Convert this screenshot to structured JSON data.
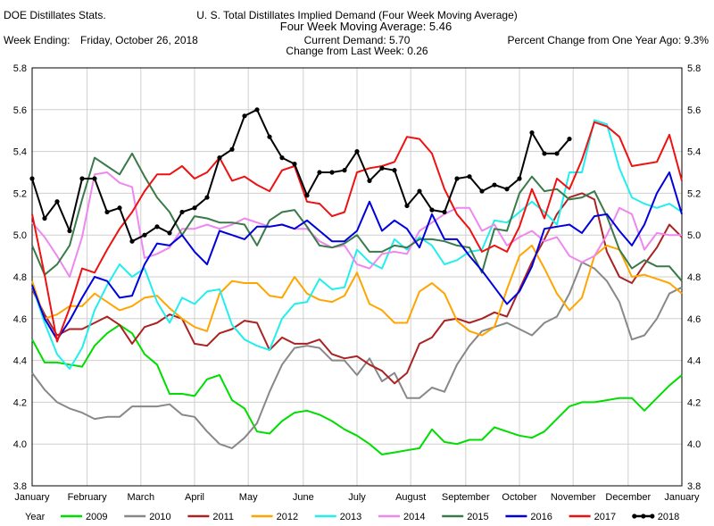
{
  "header": {
    "left_title": "DOE Distillates Stats.",
    "main_title": "U. S. Total Distillates Implied Demand  (Four Week Moving Average)",
    "sub_title": "Four Week Moving Average:  5.46",
    "week_label": "Week Ending:",
    "week_value": "Friday, October 26, 2018",
    "current_demand": "Current Demand:  5.70",
    "change_last_week": "Change from Last Week:  0.26",
    "pct_change": "Percent Change from One Year Ago:  9.3%"
  },
  "chart_data": {
    "type": "line",
    "title": "U. S. Total Distillates Implied Demand  (Four Week Moving Average)",
    "xlabel": "",
    "ylabel": "",
    "xlim": [
      1,
      53
    ],
    "ylim": [
      3.8,
      5.8
    ],
    "y_ticks": [
      "3.8",
      "4.0",
      "4.2",
      "4.4",
      "4.6",
      "4.8",
      "5.0",
      "5.2",
      "5.4",
      "5.6",
      "5.8"
    ],
    "y_tick_values": [
      3.8,
      4.0,
      4.2,
      4.4,
      4.6,
      4.8,
      5.0,
      5.2,
      5.4,
      5.6,
      5.8
    ],
    "x_tick_labels": [
      "January",
      "February",
      "March",
      "April",
      "May",
      "June",
      "July",
      "August",
      "September",
      "October",
      "November",
      "December",
      "January"
    ],
    "x_tick_weeks": [
      1,
      5.4,
      9.7,
      14,
      18.3,
      22.7,
      27,
      31.3,
      35.7,
      40,
      44.3,
      48.7,
      53
    ],
    "grid": true,
    "legend_title": "Year",
    "legend_position": "bottom",
    "series": [
      {
        "name": "2009",
        "color": "#00dd00",
        "values": [
          4.5,
          4.39,
          4.39,
          4.38,
          4.37,
          4.47,
          4.53,
          4.57,
          4.53,
          4.43,
          4.38,
          4.24,
          4.24,
          4.23,
          4.31,
          4.33,
          4.21,
          4.17,
          4.06,
          4.05,
          4.11,
          4.15,
          4.16,
          4.14,
          4.11,
          4.07,
          4.04,
          4.0,
          3.95,
          3.96,
          3.97,
          3.98,
          4.07,
          4.01,
          4.0,
          4.02,
          4.02,
          4.08,
          4.06,
          4.04,
          4.03,
          4.06,
          4.12,
          4.18,
          4.2,
          4.2,
          4.21,
          4.22,
          4.22,
          4.16,
          4.22,
          4.28,
          4.33
        ]
      },
      {
        "name": "2010",
        "color": "#888888",
        "values": [
          4.34,
          4.26,
          4.2,
          4.17,
          4.15,
          4.12,
          4.13,
          4.13,
          4.18,
          4.18,
          4.18,
          4.19,
          4.14,
          4.13,
          4.06,
          4.0,
          3.98,
          4.03,
          4.1,
          4.25,
          4.38,
          4.46,
          4.47,
          4.46,
          4.4,
          4.4,
          4.33,
          4.41,
          4.3,
          4.34,
          4.22,
          4.22,
          4.27,
          4.25,
          4.38,
          4.47,
          4.54,
          4.56,
          4.58,
          4.55,
          4.52,
          4.58,
          4.61,
          4.72,
          4.87,
          4.84,
          4.78,
          4.68,
          4.5,
          4.52,
          4.6,
          4.72,
          4.75
        ]
      },
      {
        "name": "2011",
        "color": "#aa2222",
        "values": [
          4.74,
          4.62,
          4.52,
          4.55,
          4.55,
          4.58,
          4.61,
          4.57,
          4.48,
          4.56,
          4.58,
          4.62,
          4.6,
          4.48,
          4.47,
          4.53,
          4.55,
          4.59,
          4.58,
          4.45,
          4.51,
          4.48,
          4.48,
          4.5,
          4.43,
          4.41,
          4.42,
          4.38,
          4.35,
          4.29,
          4.34,
          4.48,
          4.51,
          4.59,
          4.6,
          4.58,
          4.6,
          4.63,
          4.61,
          4.74,
          4.87,
          4.98,
          5.1,
          5.18,
          5.2,
          5.17,
          4.92,
          4.8,
          4.77,
          4.86,
          4.94,
          5.05,
          4.99
        ]
      },
      {
        "name": "2012",
        "color": "#ffa500",
        "values": [
          4.78,
          4.6,
          4.62,
          4.66,
          4.66,
          4.72,
          4.68,
          4.64,
          4.66,
          4.7,
          4.71,
          4.65,
          4.6,
          4.56,
          4.54,
          4.72,
          4.78,
          4.77,
          4.77,
          4.71,
          4.7,
          4.8,
          4.72,
          4.69,
          4.68,
          4.71,
          4.82,
          4.67,
          4.64,
          4.58,
          4.58,
          4.73,
          4.77,
          4.72,
          4.59,
          4.54,
          4.52,
          4.56,
          4.74,
          4.9,
          4.95,
          4.84,
          4.72,
          4.64,
          4.7,
          4.9,
          4.95,
          4.93,
          4.8,
          4.81,
          4.79,
          4.77,
          4.72
        ]
      },
      {
        "name": "2013",
        "color": "#22eeee",
        "values": [
          4.76,
          4.58,
          4.43,
          4.36,
          4.46,
          4.64,
          4.76,
          4.86,
          4.8,
          4.84,
          4.68,
          4.58,
          4.7,
          4.67,
          4.73,
          4.74,
          4.57,
          4.5,
          4.47,
          4.45,
          4.6,
          4.67,
          4.68,
          4.79,
          4.74,
          4.75,
          4.93,
          4.87,
          4.84,
          4.98,
          4.93,
          4.99,
          4.95,
          4.86,
          4.88,
          4.92,
          4.93,
          5.07,
          5.06,
          5.11,
          5.16,
          5.11,
          5.05,
          5.3,
          5.3,
          5.55,
          5.53,
          5.32,
          5.18,
          5.15,
          5.13,
          5.15,
          5.11
        ]
      },
      {
        "name": "2014",
        "color": "#ee88ee",
        "values": [
          5.06,
          4.99,
          4.9,
          4.8,
          4.99,
          5.29,
          5.3,
          5.25,
          5.23,
          4.89,
          4.91,
          4.94,
          5.03,
          5.03,
          5.05,
          5.03,
          5.05,
          5.08,
          5.06,
          5.04,
          5.05,
          5.03,
          5.03,
          4.97,
          4.94,
          4.95,
          4.86,
          4.84,
          4.91,
          4.92,
          4.91,
          5.02,
          5.06,
          5.1,
          5.13,
          5.13,
          5.02,
          5.05,
          4.95,
          4.99,
          5.02,
          4.97,
          4.99,
          4.9,
          4.87,
          4.9,
          5.0,
          5.13,
          5.1,
          4.93,
          5.01,
          5.0,
          5.0
        ]
      },
      {
        "name": "2015",
        "color": "#3a7a4a",
        "values": [
          4.95,
          4.81,
          4.86,
          4.95,
          5.17,
          5.37,
          5.33,
          5.29,
          5.39,
          5.28,
          5.18,
          5.11,
          5.0,
          5.09,
          5.08,
          5.06,
          5.06,
          5.05,
          4.95,
          5.07,
          5.11,
          5.12,
          5.04,
          4.95,
          4.94,
          4.96,
          5.0,
          4.92,
          4.92,
          4.95,
          4.94,
          4.98,
          4.98,
          4.97,
          4.95,
          4.94,
          4.82,
          5.03,
          5.02,
          5.2,
          5.28,
          5.21,
          5.22,
          5.17,
          5.18,
          5.21,
          5.09,
          4.93,
          4.84,
          4.88,
          4.85,
          4.85,
          4.78
        ]
      },
      {
        "name": "2016",
        "color": "#0000dd",
        "values": [
          4.76,
          4.6,
          4.5,
          4.59,
          4.7,
          4.8,
          4.78,
          4.7,
          4.71,
          4.86,
          4.96,
          4.95,
          5.0,
          4.92,
          4.86,
          5.02,
          5.0,
          4.98,
          5.04,
          5.04,
          5.05,
          5.03,
          5.07,
          5.02,
          4.97,
          4.97,
          5.02,
          5.16,
          5.02,
          5.07,
          5.03,
          4.94,
          5.1,
          4.98,
          4.98,
          4.9,
          4.83,
          4.75,
          4.67,
          4.73,
          4.85,
          5.03,
          5.04,
          5.05,
          5.01,
          5.09,
          5.1,
          5.02,
          4.95,
          5.05,
          5.2,
          5.3,
          5.1
        ]
      },
      {
        "name": "2017",
        "color": "#ee1111",
        "values": [
          5.1,
          4.81,
          4.49,
          4.65,
          4.84,
          4.82,
          4.93,
          5.03,
          5.11,
          5.21,
          5.29,
          5.29,
          5.33,
          5.27,
          5.3,
          5.37,
          5.26,
          5.28,
          5.24,
          5.21,
          5.31,
          5.33,
          5.16,
          5.15,
          5.09,
          5.11,
          5.3,
          5.32,
          5.33,
          5.35,
          5.47,
          5.46,
          5.39,
          5.22,
          5.1,
          5.03,
          4.92,
          4.95,
          4.92,
          5.04,
          5.22,
          5.08,
          5.27,
          5.22,
          5.36,
          5.54,
          5.52,
          5.47,
          5.33,
          5.34,
          5.35,
          5.48,
          5.26
        ]
      },
      {
        "name": "2018",
        "color": "#000000",
        "values": [
          5.27,
          5.08,
          5.16,
          5.02,
          5.27,
          5.27,
          5.11,
          5.13,
          4.97,
          5.0,
          5.04,
          5.01,
          5.11,
          5.13,
          5.18,
          5.37,
          5.41,
          5.57,
          5.6,
          5.47,
          5.37,
          5.34,
          5.19,
          5.3,
          5.3,
          5.31,
          5.4,
          5.26,
          5.32,
          5.31,
          5.14,
          5.21,
          5.12,
          5.11,
          5.27,
          5.28,
          5.21,
          5.24,
          5.22,
          5.27,
          5.49,
          5.39,
          5.39,
          5.46,
          null,
          null,
          null,
          null,
          null,
          null,
          null,
          null,
          null
        ]
      }
    ]
  }
}
